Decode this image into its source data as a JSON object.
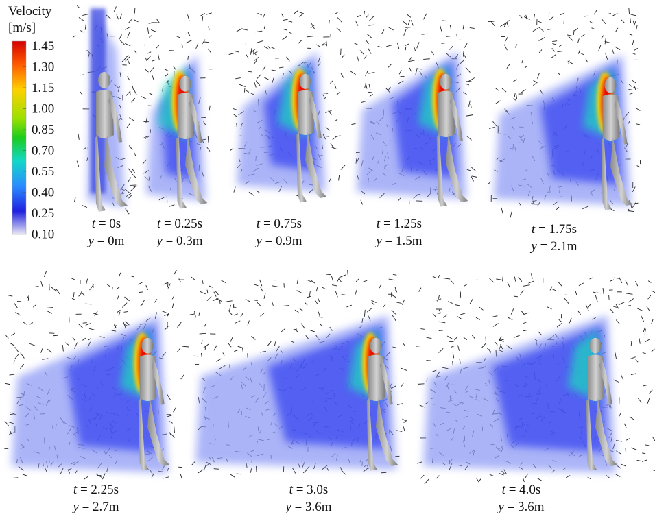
{
  "colorbar": {
    "title": "Velocity",
    "unit": "[m/s]",
    "ticks": [
      "1.45",
      "1.30",
      "1.15",
      "1.00",
      "0.85",
      "0.70",
      "0.55",
      "0.40",
      "0.25",
      "0.10"
    ]
  },
  "panels": [
    {
      "time": "t = 0s",
      "position": "y = 0m"
    },
    {
      "time": "t = 0.25s",
      "position": "y = 0.3m"
    },
    {
      "time": "t = 0.75s",
      "position": "y = 0.9m"
    },
    {
      "time": "t = 1.25s",
      "position": "y = 1.5m"
    },
    {
      "time": "t = 1.75s",
      "position": "y = 2.1m"
    },
    {
      "time": "t = 2.25s",
      "position": "y = 2.7m"
    },
    {
      "time": "t = 3.0s",
      "position": "y = 3.6m"
    },
    {
      "time": "t = 4.0s",
      "position": "y = 3.6m"
    }
  ]
}
